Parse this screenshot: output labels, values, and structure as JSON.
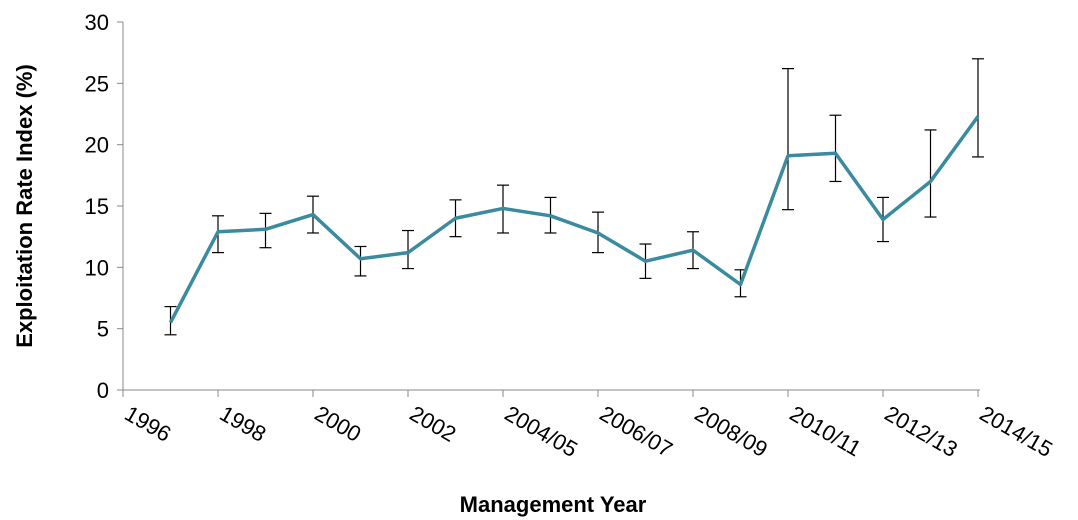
{
  "chart_data": {
    "type": "line",
    "x_label": "Management Year",
    "y_label": "Exploitation Rate Index (%)",
    "categories": [
      "1996",
      null,
      "1998",
      null,
      "2000",
      null,
      "2002",
      null,
      "2004/05",
      null,
      "2006/07",
      null,
      "2008/09",
      null,
      "2010/11",
      null,
      "2012/13",
      null,
      "2014/15"
    ],
    "series": [
      {
        "color": "#3a8aa0",
        "values": [
          5.5,
          12.9,
          13.1,
          14.3,
          10.7,
          11.2,
          14.0,
          14.8,
          14.2,
          12.8,
          10.5,
          11.4,
          8.6,
          19.1,
          19.3,
          13.9,
          17.0,
          22.3,
          null
        ],
        "error_plus": [
          1.3,
          1.3,
          1.3,
          1.5,
          1.0,
          1.8,
          1.5,
          1.9,
          1.5,
          1.7,
          1.4,
          1.5,
          1.2,
          7.1,
          3.1,
          1.8,
          4.2,
          4.7,
          null
        ],
        "error_minus": [
          1.0,
          1.7,
          1.5,
          1.5,
          1.4,
          1.3,
          1.5,
          2.0,
          1.4,
          1.6,
          1.4,
          1.5,
          1.0,
          4.4,
          2.3,
          1.8,
          2.9,
          3.3,
          null
        ]
      }
    ],
    "error_color": "#000000",
    "ylim": [
      0,
      30
    ],
    "yticks": [
      0,
      5,
      10,
      15,
      20,
      25,
      30
    ]
  }
}
